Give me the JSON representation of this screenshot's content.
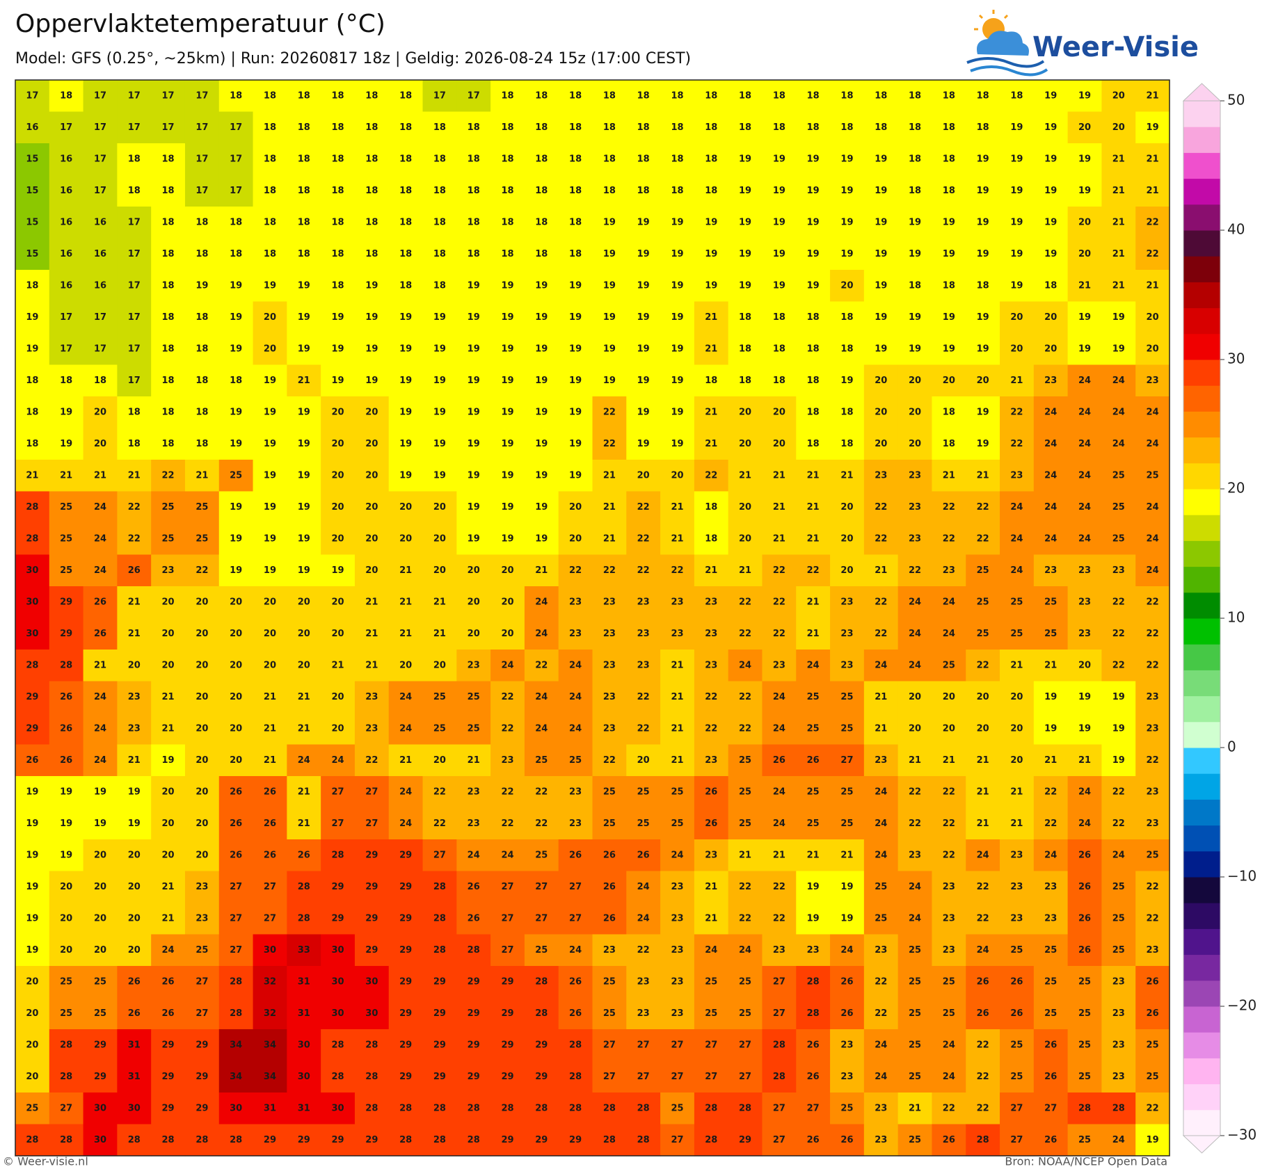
{
  "header": {
    "title": "Oppervlaktetemperatuur (°C)",
    "subtitle": "Model: GFS (0.25°, ~25km)  |  Run: 20260817 18z  |  Geldig: 2026-08-24 15z (17:00 CEST)"
  },
  "logo": {
    "text": "Weer-Visie"
  },
  "map": {
    "rows": [
      [
        17,
        18,
        17,
        17,
        17,
        17,
        18,
        18,
        18,
        18,
        18,
        18,
        17,
        17,
        18,
        18,
        18,
        18,
        18,
        18,
        18,
        18,
        18,
        18,
        18,
        18,
        18,
        18,
        18,
        18,
        19,
        19,
        20,
        21
      ],
      [
        16,
        17,
        17,
        17,
        17,
        17,
        17,
        18,
        18,
        18,
        18,
        18,
        18,
        18,
        18,
        18,
        18,
        18,
        18,
        18,
        18,
        18,
        18,
        18,
        18,
        18,
        18,
        18,
        18,
        19,
        19,
        20,
        20,
        19
      ],
      [
        15,
        16,
        17,
        18,
        18,
        17,
        17,
        18,
        18,
        18,
        18,
        18,
        18,
        18,
        18,
        18,
        18,
        18,
        18,
        18,
        18,
        19,
        19,
        19,
        19,
        19,
        18,
        18,
        19,
        19,
        19,
        19,
        21,
        21
      ],
      [
        15,
        16,
        17,
        18,
        18,
        17,
        17,
        18,
        18,
        18,
        18,
        18,
        18,
        18,
        18,
        18,
        18,
        18,
        18,
        18,
        18,
        19,
        19,
        19,
        19,
        19,
        18,
        18,
        19,
        19,
        19,
        19,
        21,
        21
      ],
      [
        15,
        16,
        16,
        17,
        18,
        18,
        18,
        18,
        18,
        18,
        18,
        18,
        18,
        18,
        18,
        18,
        18,
        19,
        19,
        19,
        19,
        19,
        19,
        19,
        19,
        19,
        19,
        19,
        19,
        19,
        19,
        20,
        21,
        22
      ],
      [
        15,
        16,
        16,
        17,
        18,
        18,
        18,
        18,
        18,
        18,
        18,
        18,
        18,
        18,
        18,
        18,
        18,
        19,
        19,
        19,
        19,
        19,
        19,
        19,
        19,
        19,
        19,
        19,
        19,
        19,
        19,
        20,
        21,
        22
      ],
      [
        18,
        16,
        16,
        17,
        18,
        19,
        19,
        19,
        19,
        18,
        19,
        18,
        18,
        19,
        19,
        19,
        19,
        19,
        19,
        19,
        19,
        19,
        19,
        19,
        20,
        19,
        18,
        18,
        18,
        19,
        18,
        21,
        21,
        21
      ],
      [
        19,
        17,
        17,
        17,
        18,
        18,
        19,
        20,
        19,
        19,
        19,
        19,
        19,
        19,
        19,
        19,
        19,
        19,
        19,
        19,
        21,
        18,
        18,
        18,
        18,
        19,
        19,
        19,
        19,
        20,
        20,
        19,
        19,
        20
      ],
      [
        19,
        17,
        17,
        17,
        18,
        18,
        19,
        20,
        19,
        19,
        19,
        19,
        19,
        19,
        19,
        19,
        19,
        19,
        19,
        19,
        21,
        18,
        18,
        18,
        18,
        19,
        19,
        19,
        19,
        20,
        20,
        19,
        19,
        20
      ],
      [
        18,
        18,
        18,
        17,
        18,
        18,
        18,
        19,
        21,
        19,
        19,
        19,
        19,
        19,
        19,
        19,
        19,
        19,
        19,
        19,
        18,
        18,
        18,
        18,
        19,
        20,
        20,
        20,
        20,
        21,
        23,
        24,
        24,
        23
      ],
      [
        18,
        19,
        20,
        18,
        18,
        18,
        19,
        19,
        19,
        20,
        20,
        19,
        19,
        19,
        19,
        19,
        19,
        22,
        19,
        19,
        21,
        20,
        20,
        18,
        18,
        20,
        20,
        18,
        19,
        22,
        24,
        24,
        24,
        24
      ],
      [
        18,
        19,
        20,
        18,
        18,
        18,
        19,
        19,
        19,
        20,
        20,
        19,
        19,
        19,
        19,
        19,
        19,
        22,
        19,
        19,
        21,
        20,
        20,
        18,
        18,
        20,
        20,
        18,
        19,
        22,
        24,
        24,
        24,
        24
      ],
      [
        21,
        21,
        21,
        21,
        22,
        21,
        25,
        19,
        19,
        20,
        20,
        19,
        19,
        19,
        19,
        19,
        19,
        21,
        20,
        20,
        22,
        21,
        21,
        21,
        21,
        23,
        23,
        21,
        21,
        23,
        24,
        24,
        25,
        25
      ],
      [
        28,
        25,
        24,
        22,
        25,
        25,
        19,
        19,
        19,
        20,
        20,
        20,
        20,
        19,
        19,
        19,
        20,
        21,
        22,
        21,
        18,
        20,
        21,
        21,
        20,
        22,
        23,
        22,
        22,
        24,
        24,
        24,
        25,
        24
      ],
      [
        28,
        25,
        24,
        22,
        25,
        25,
        19,
        19,
        19,
        20,
        20,
        20,
        20,
        19,
        19,
        19,
        20,
        21,
        22,
        21,
        18,
        20,
        21,
        21,
        20,
        22,
        23,
        22,
        22,
        24,
        24,
        24,
        25,
        24
      ],
      [
        30,
        25,
        24,
        26,
        23,
        22,
        19,
        19,
        19,
        19,
        20,
        21,
        20,
        20,
        20,
        21,
        22,
        22,
        22,
        22,
        21,
        21,
        22,
        22,
        20,
        21,
        22,
        23,
        25,
        24,
        23,
        23,
        23,
        24
      ],
      [
        30,
        29,
        26,
        21,
        20,
        20,
        20,
        20,
        20,
        20,
        21,
        21,
        21,
        20,
        20,
        24,
        23,
        23,
        23,
        23,
        23,
        22,
        22,
        21,
        23,
        22,
        24,
        24,
        25,
        25,
        25,
        23,
        22,
        22
      ],
      [
        30,
        29,
        26,
        21,
        20,
        20,
        20,
        20,
        20,
        20,
        21,
        21,
        21,
        20,
        20,
        24,
        23,
        23,
        23,
        23,
        23,
        22,
        22,
        21,
        23,
        22,
        24,
        24,
        25,
        25,
        25,
        23,
        22,
        22
      ],
      [
        28,
        28,
        21,
        20,
        20,
        20,
        20,
        20,
        20,
        21,
        21,
        20,
        20,
        23,
        24,
        22,
        24,
        23,
        23,
        21,
        23,
        24,
        23,
        24,
        23,
        24,
        24,
        25,
        22,
        21,
        21,
        20,
        22,
        22
      ],
      [
        29,
        26,
        24,
        23,
        21,
        20,
        20,
        21,
        21,
        20,
        23,
        24,
        25,
        25,
        22,
        24,
        24,
        23,
        22,
        21,
        22,
        22,
        24,
        25,
        25,
        21,
        20,
        20,
        20,
        20,
        19,
        19,
        19,
        23
      ],
      [
        29,
        26,
        24,
        23,
        21,
        20,
        20,
        21,
        21,
        20,
        23,
        24,
        25,
        25,
        22,
        24,
        24,
        23,
        22,
        21,
        22,
        22,
        24,
        25,
        25,
        21,
        20,
        20,
        20,
        20,
        19,
        19,
        19,
        23
      ],
      [
        26,
        26,
        24,
        21,
        19,
        20,
        20,
        21,
        24,
        24,
        22,
        21,
        20,
        21,
        23,
        25,
        25,
        22,
        20,
        21,
        23,
        25,
        26,
        26,
        27,
        23,
        21,
        21,
        21,
        20,
        21,
        21,
        19,
        22
      ],
      [
        19,
        19,
        19,
        19,
        20,
        20,
        26,
        26,
        21,
        27,
        27,
        24,
        22,
        23,
        22,
        22,
        23,
        25,
        25,
        25,
        26,
        25,
        24,
        25,
        25,
        24,
        22,
        22,
        21,
        21,
        22,
        24,
        22,
        23
      ],
      [
        19,
        19,
        19,
        19,
        20,
        20,
        26,
        26,
        21,
        27,
        27,
        24,
        22,
        23,
        22,
        22,
        23,
        25,
        25,
        25,
        26,
        25,
        24,
        25,
        25,
        24,
        22,
        22,
        21,
        21,
        22,
        24,
        22,
        23
      ],
      [
        19,
        19,
        20,
        20,
        20,
        20,
        26,
        26,
        26,
        28,
        29,
        29,
        27,
        24,
        24,
        25,
        26,
        26,
        26,
        24,
        23,
        21,
        21,
        21,
        21,
        24,
        23,
        22,
        24,
        23,
        24,
        26,
        24,
        25
      ],
      [
        19,
        20,
        20,
        20,
        21,
        23,
        27,
        27,
        28,
        29,
        29,
        29,
        28,
        26,
        27,
        27,
        27,
        26,
        24,
        23,
        21,
        22,
        22,
        19,
        19,
        25,
        24,
        23,
        22,
        23,
        23,
        26,
        25,
        22
      ],
      [
        19,
        20,
        20,
        20,
        21,
        23,
        27,
        27,
        28,
        29,
        29,
        29,
        28,
        26,
        27,
        27,
        27,
        26,
        24,
        23,
        21,
        22,
        22,
        19,
        19,
        25,
        24,
        23,
        22,
        23,
        23,
        26,
        25,
        22
      ],
      [
        19,
        20,
        20,
        20,
        24,
        25,
        27,
        30,
        33,
        30,
        29,
        29,
        28,
        28,
        27,
        25,
        24,
        23,
        22,
        23,
        24,
        24,
        23,
        23,
        24,
        23,
        25,
        23,
        24,
        25,
        25,
        26,
        25,
        23
      ],
      [
        20,
        25,
        25,
        26,
        26,
        27,
        28,
        32,
        31,
        30,
        30,
        29,
        29,
        29,
        29,
        28,
        26,
        25,
        23,
        23,
        25,
        25,
        27,
        28,
        26,
        22,
        25,
        25,
        26,
        26,
        25,
        25,
        23,
        26
      ],
      [
        20,
        25,
        25,
        26,
        26,
        27,
        28,
        32,
        31,
        30,
        30,
        29,
        29,
        29,
        29,
        28,
        26,
        25,
        23,
        23,
        25,
        25,
        27,
        28,
        26,
        22,
        25,
        25,
        26,
        26,
        25,
        25,
        23,
        26
      ],
      [
        20,
        28,
        29,
        31,
        29,
        29,
        34,
        34,
        30,
        28,
        28,
        29,
        29,
        29,
        29,
        29,
        28,
        27,
        27,
        27,
        27,
        27,
        28,
        26,
        23,
        24,
        25,
        24,
        22,
        25,
        26,
        25,
        23,
        25
      ],
      [
        20,
        28,
        29,
        31,
        29,
        29,
        34,
        34,
        30,
        28,
        28,
        29,
        29,
        29,
        29,
        29,
        28,
        27,
        27,
        27,
        27,
        27,
        28,
        26,
        23,
        24,
        25,
        24,
        22,
        25,
        26,
        25,
        23,
        25
      ],
      [
        25,
        27,
        30,
        30,
        29,
        29,
        30,
        31,
        31,
        30,
        28,
        28,
        28,
        28,
        28,
        28,
        28,
        28,
        28,
        25,
        28,
        28,
        27,
        27,
        25,
        23,
        21,
        22,
        22,
        27,
        27,
        28,
        28,
        22
      ],
      [
        28,
        28,
        30,
        28,
        28,
        28,
        28,
        29,
        29,
        29,
        29,
        28,
        28,
        28,
        29,
        29,
        29,
        28,
        28,
        27,
        28,
        29,
        27,
        26,
        26,
        23,
        25,
        26,
        28,
        27,
        26,
        25,
        24,
        19
      ]
    ]
  },
  "colorbar": {
    "min": -30,
    "max": 50,
    "ticks": [
      {
        "value": -30,
        "label": "−30"
      },
      {
        "value": -20,
        "label": "−20"
      },
      {
        "value": -10,
        "label": "−10"
      },
      0,
      10,
      20,
      30,
      40,
      50
    ],
    "colors": [
      "#fff0fc",
      "#ffd2f8",
      "#ffb4f0",
      "#e68ce6",
      "#c864d2",
      "#9b46b4",
      "#7828a0",
      "#50148c",
      "#2d0a64",
      "#14083c",
      "#001e8c",
      "#0050b4",
      "#0078c8",
      "#00a5e6",
      "#32c8ff",
      "#d0ffd0",
      "#a0f0a0",
      "#78dc78",
      "#46c846",
      "#00c000",
      "#008c00",
      "#50b400",
      "#8cc800",
      "#cddc00",
      "#ffff00",
      "#ffd700",
      "#ffb400",
      "#ff8c00",
      "#ff6400",
      "#ff4000",
      "#f00000",
      "#d80000",
      "#b40000",
      "#7d000a",
      "#4e0a36",
      "#8a0e6f",
      "#c20aa8",
      "#ef50cd",
      "#f8a5dd",
      "#fcd2ef"
    ]
  },
  "footer": {
    "left": "© Weer-visie.nl",
    "right": "Bron: NOAA/NCEP Open Data"
  }
}
